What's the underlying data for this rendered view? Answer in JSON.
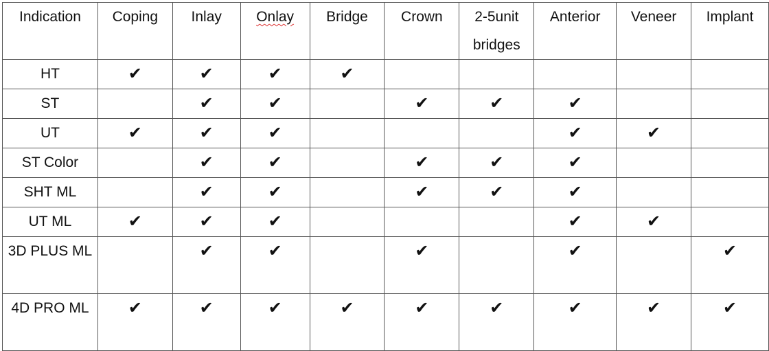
{
  "table": {
    "headers": [
      "Indication",
      "Coping",
      "Inlay",
      "Onlay",
      "Bridge",
      "Crown",
      "2-5unit bridges",
      "Anterior",
      "Veneer",
      "Implant"
    ],
    "check_symbol": "✔",
    "rows": [
      {
        "label": "HT",
        "checks": [
          true,
          true,
          true,
          true,
          false,
          false,
          false,
          false,
          false
        ]
      },
      {
        "label": "ST",
        "checks": [
          false,
          true,
          true,
          false,
          true,
          true,
          true,
          false,
          false
        ]
      },
      {
        "label": "UT",
        "checks": [
          true,
          true,
          true,
          false,
          false,
          false,
          true,
          true,
          false
        ]
      },
      {
        "label": "ST Color",
        "checks": [
          false,
          true,
          true,
          false,
          true,
          true,
          true,
          false,
          false
        ]
      },
      {
        "label": "SHT ML",
        "checks": [
          false,
          true,
          true,
          false,
          true,
          true,
          true,
          false,
          false
        ]
      },
      {
        "label": "UT ML",
        "checks": [
          true,
          true,
          true,
          false,
          false,
          false,
          true,
          true,
          false
        ]
      },
      {
        "label": "3D PLUS ML",
        "checks": [
          false,
          true,
          true,
          false,
          true,
          false,
          true,
          false,
          true
        ]
      },
      {
        "label": "4D PRO ML",
        "checks": [
          true,
          true,
          true,
          true,
          true,
          true,
          true,
          true,
          true
        ]
      }
    ]
  }
}
